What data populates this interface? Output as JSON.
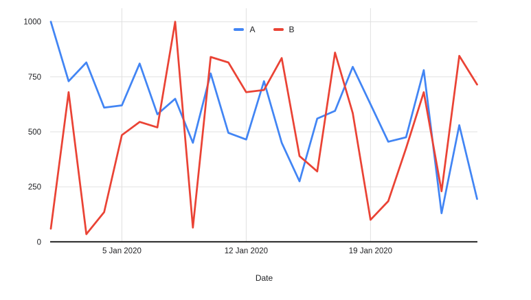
{
  "chart": {
    "x_axis_title": "Date",
    "legend_items": [
      "A",
      "B"
    ]
  },
  "chart_data": {
    "type": "line",
    "x": [
      "1 Jan 2020",
      "2 Jan 2020",
      "3 Jan 2020",
      "4 Jan 2020",
      "5 Jan 2020",
      "6 Jan 2020",
      "7 Jan 2020",
      "8 Jan 2020",
      "9 Jan 2020",
      "10 Jan 2020",
      "11 Jan 2020",
      "12 Jan 2020",
      "13 Jan 2020",
      "14 Jan 2020",
      "15 Jan 2020",
      "16 Jan 2020",
      "17 Jan 2020",
      "18 Jan 2020",
      "19 Jan 2020",
      "20 Jan 2020",
      "21 Jan 2020",
      "22 Jan 2020",
      "23 Jan 2020",
      "24 Jan 2020",
      "25 Jan 2020"
    ],
    "series": [
      {
        "name": "A",
        "color": "#4285F4",
        "values": [
          1000,
          730,
          815,
          610,
          620,
          810,
          580,
          650,
          450,
          765,
          495,
          465,
          730,
          450,
          275,
          560,
          595,
          795,
          625,
          455,
          475,
          780,
          130,
          530,
          195
        ]
      },
      {
        "name": "B",
        "color": "#EA4335",
        "values": [
          60,
          680,
          35,
          135,
          485,
          545,
          520,
          1000,
          65,
          840,
          815,
          680,
          690,
          835,
          390,
          320,
          860,
          585,
          100,
          185,
          425,
          680,
          230,
          845,
          715
        ]
      }
    ],
    "title": "",
    "xlabel": "Date",
    "ylabel": "",
    "ylim": [
      0,
      1000
    ],
    "y_ticks": [
      0,
      250,
      500,
      750,
      1000
    ],
    "x_ticks": [
      {
        "day": 5,
        "label": "5 Jan 2020"
      },
      {
        "day": 12,
        "label": "12 Jan 2020"
      },
      {
        "day": 19,
        "label": "19 Jan 2020"
      }
    ],
    "grid": true,
    "legend_position": "top",
    "colors": {
      "gridline": "#e0e0e0",
      "axis_line": "#212121",
      "tick_text": "#202124",
      "background": "#ffffff"
    }
  }
}
